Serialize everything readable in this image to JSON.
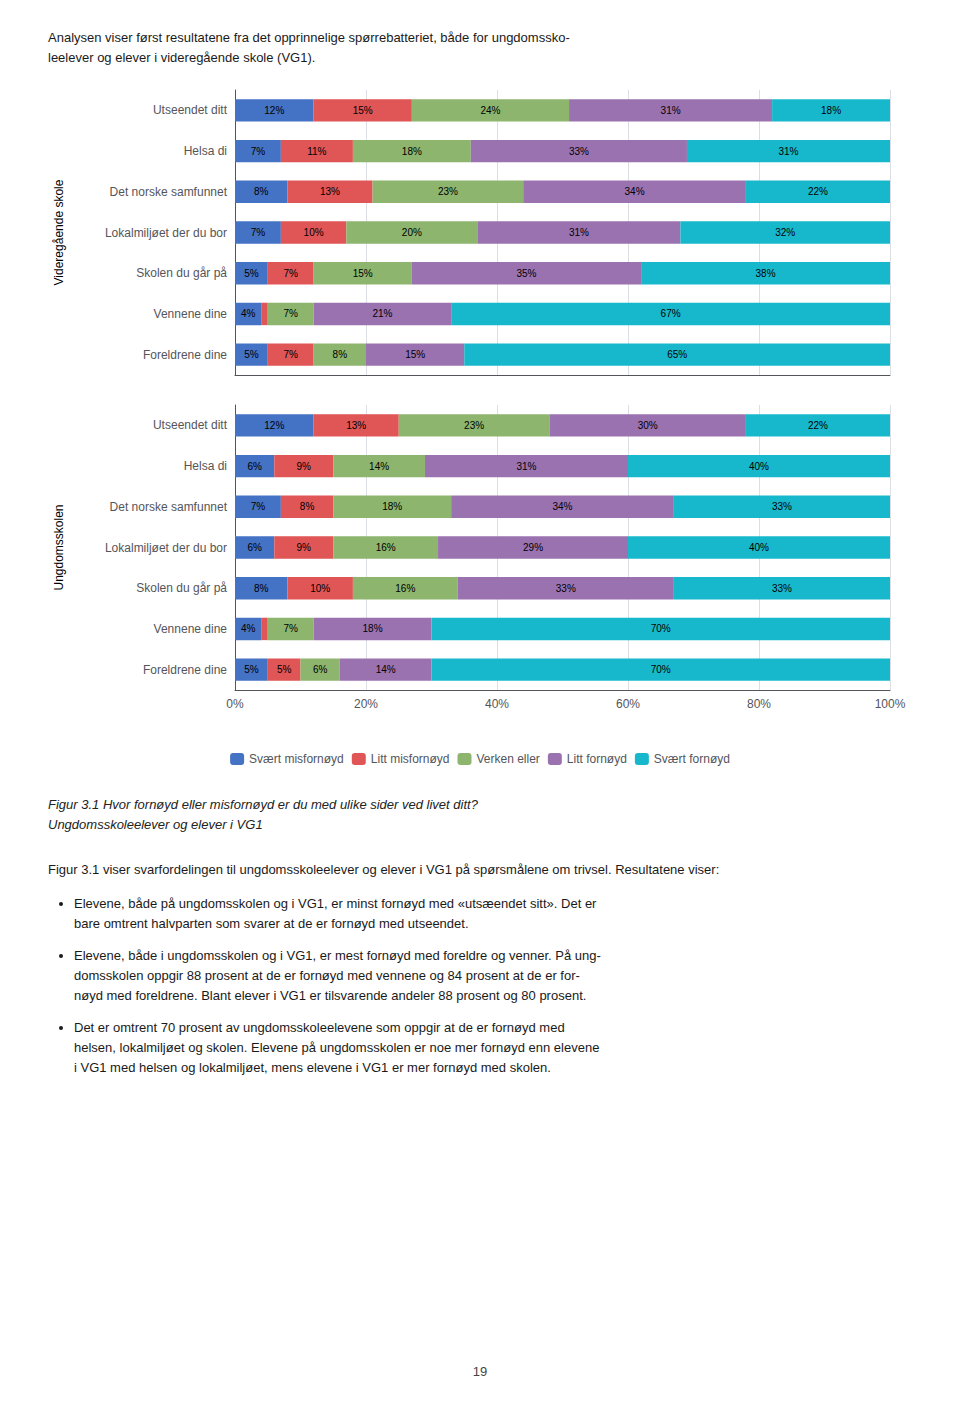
{
  "header": [
    "Analysen viser først resultatene fra det opprinnelige spørrebatteriet, både for ungdomssko-",
    "leelever og elever i videregående skole (VG1)."
  ],
  "chart_data": [
    {
      "type": "bar",
      "orientation": "horizontal",
      "stacked": true,
      "data_labels": true,
      "ylabel": "Videregående skole",
      "categories": [
        "Utseendet ditt",
        "Helsa di",
        "Det norske samfunnet",
        "Lokalmiljøet der du bor",
        "Skolen du går på",
        "Vennene dine",
        "Foreldrene dine"
      ],
      "series": [
        {
          "name": "Svært misfornøyd",
          "color": "#4472c4",
          "values": [
            12,
            7,
            8,
            7,
            5,
            4,
            5
          ],
          "value_labels": [
            "12%",
            "7%",
            "8%",
            "7%",
            "5%",
            "4%",
            "5%"
          ]
        },
        {
          "name": "Litt misfornøyd",
          "color": "#e05555",
          "values": [
            15,
            11,
            13,
            10,
            7,
            1,
            7
          ],
          "value_labels": [
            "15%",
            "11%",
            "13%",
            "10%",
            "7%",
            null,
            "7%"
          ]
        },
        {
          "name": "Verken eller",
          "color": "#8db56e",
          "values": [
            24,
            18,
            23,
            20,
            15,
            7,
            8
          ],
          "value_labels": [
            "24%",
            "18%",
            "23%",
            "20%",
            "15%",
            "7%",
            "8%"
          ]
        },
        {
          "name": "Litt fornøyd",
          "color": "#9b72b0",
          "values": [
            31,
            33,
            34,
            31,
            35,
            21,
            15
          ],
          "value_labels": [
            "31%",
            "33%",
            "34%",
            "31%",
            "35%",
            "21%",
            "15%"
          ]
        },
        {
          "name": "Svært fornøyd",
          "color": "#17b8cc",
          "values": [
            18,
            31,
            22,
            32,
            38,
            67,
            65
          ],
          "value_labels": [
            "18%",
            "31%",
            "22%",
            "32%",
            "38%",
            "67%",
            "65%"
          ]
        }
      ],
      "xlim": [
        0,
        100
      ],
      "xticks": [
        {
          "value": 0,
          "label": "0%"
        },
        {
          "value": 20,
          "label": "20%"
        },
        {
          "value": 40,
          "label": "40%"
        },
        {
          "value": 60,
          "label": "60%"
        },
        {
          "value": 80,
          "label": "80%"
        },
        {
          "value": 100,
          "label": "100%"
        }
      ],
      "grid": true,
      "tick_labels": "y"
    },
    {
      "type": "bar",
      "orientation": "horizontal",
      "stacked": true,
      "data_labels": true,
      "ylabel": "Ungdomsskolen",
      "categories": [
        "Utseendet ditt",
        "Helsa di",
        "Det norske samfunnet",
        "Lokalmiljøet der du bor",
        "Skolen du går på",
        "Vennene dine",
        "Foreldrene dine"
      ],
      "series": [
        {
          "name": "Svært misfornøyd",
          "color": "#4472c4",
          "values": [
            12,
            6,
            7,
            6,
            8,
            4,
            5
          ],
          "value_labels": [
            "12%",
            "6%",
            "7%",
            "6%",
            "8%",
            "4%",
            "5%"
          ]
        },
        {
          "name": "Litt misfornøyd",
          "color": "#e05555",
          "values": [
            13,
            9,
            8,
            9,
            10,
            1,
            5
          ],
          "value_labels": [
            "13%",
            "9%",
            "8%",
            "9%",
            "10%",
            null,
            "5%"
          ]
        },
        {
          "name": "Verken eller",
          "color": "#8db56e",
          "values": [
            23,
            14,
            18,
            16,
            16,
            7,
            6
          ],
          "value_labels": [
            "23%",
            "14%",
            "18%",
            "16%",
            "16%",
            "7%",
            "6%"
          ]
        },
        {
          "name": "Litt fornøyd",
          "color": "#9b72b0",
          "values": [
            30,
            31,
            34,
            29,
            33,
            18,
            14
          ],
          "value_labels": [
            "30%",
            "31%",
            "34%",
            "29%",
            "33%",
            "18%",
            "14%"
          ]
        },
        {
          "name": "Svært fornøyd",
          "color": "#17b8cc",
          "values": [
            22,
            40,
            33,
            40,
            33,
            70,
            70
          ],
          "value_labels": [
            "22%",
            "40%",
            "33%",
            "40%",
            "33%",
            "70%",
            "70%"
          ]
        }
      ],
      "xlim": [
        0,
        100
      ],
      "xticks": [
        {
          "value": 0,
          "label": "0%"
        },
        {
          "value": 20,
          "label": "20%"
        },
        {
          "value": 40,
          "label": "40%"
        },
        {
          "value": 60,
          "label": "60%"
        },
        {
          "value": 80,
          "label": "80%"
        },
        {
          "value": 100,
          "label": "100%"
        }
      ],
      "grid": true,
      "legend": "bottom"
    }
  ],
  "caption": [
    "Figur 3.1 Hvor fornøyd eller misfornøyd er du med ulike sider ved livet ditt?",
    "Ungdomsskoleelever og elever i VG1"
  ],
  "body": "Figur 3.1 viser svarfordelingen til ungdomsskoleelever og elever i VG1 på spørsmålene om trivsel. Resultatene viser:",
  "bullets": [
    [
      "Elevene, både på ungdomsskolen og i VG1, er minst fornøyd med «utsæendet sitt». Det er",
      "bare omtrent halvparten som svarer at de er fornøyd med utseendet."
    ],
    [
      "Elevene, både i ungdomsskolen og i VG1, er mest fornøyd med foreldre og venner. På ung-",
      "domsskolen oppgir 88 prosent at de er fornøyd med vennene og 84 prosent at de er for-",
      "nøyd med foreldrene. Blant elever i VG1 er tilsvarende andeler 88 prosent og 80 prosent."
    ],
    [
      "Det er omtrent 70 prosent av ungdomsskoleelevene som oppgir at de er fornøyd med",
      "helsen, lokalmiljøet og skolen. Elevene på ungdomsskolen er noe mer fornøyd enn elevene",
      "i VG1 med helsen og lokalmiljøet, mens elevene i VG1 er mer fornøyd med skolen."
    ]
  ],
  "page_number": "19"
}
